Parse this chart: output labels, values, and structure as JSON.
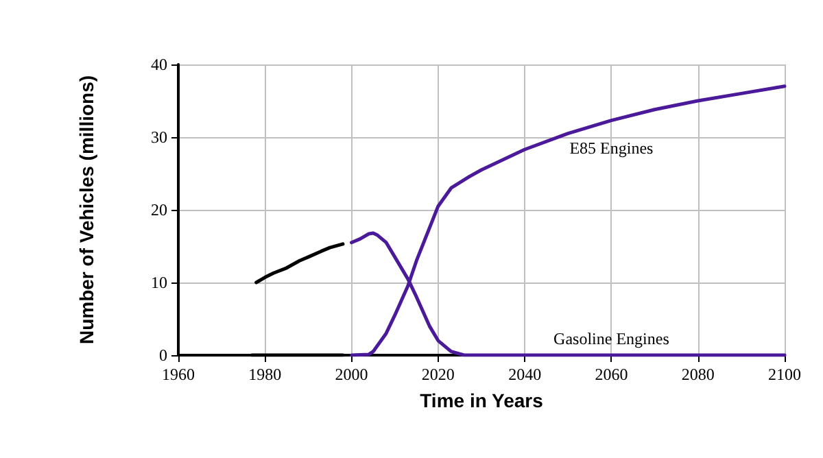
{
  "chart_data": {
    "type": "line",
    "xlabel": "Time in Years",
    "ylabel": "Number of Vehicles (millions)",
    "xlim": [
      1960,
      2100
    ],
    "xticks": [
      1960,
      1980,
      2000,
      2020,
      2040,
      2060,
      2080,
      2100
    ],
    "ylim": [
      0,
      40
    ],
    "yticks": [
      0,
      10,
      20,
      30,
      40
    ],
    "grid": true,
    "legend": false,
    "marker": "none",
    "line_style": "solid",
    "series": [
      {
        "color": "#000000",
        "x": [
          1978,
          1980,
          1982,
          1985,
          1988,
          1990,
          1993,
          1995,
          1998
        ],
        "values": [
          10,
          10.7,
          11.3,
          12,
          13,
          13.5,
          14.3,
          14.8,
          15.3
        ]
      },
      {
        "color": "#000000",
        "x": [
          1977,
          1998
        ],
        "values": [
          0,
          0
        ]
      },
      {
        "name": "Gasoline Engines",
        "color": "#4b1a9a",
        "x": [
          2000,
          2002,
          2004,
          2005,
          2006,
          2008,
          2010,
          2013,
          2015,
          2018,
          2020,
          2023,
          2026,
          2040,
          2060,
          2080,
          2100
        ],
        "values": [
          15.5,
          16,
          16.7,
          16.8,
          16.5,
          15.5,
          13.5,
          10.5,
          8,
          4,
          2,
          0.5,
          0,
          0,
          0,
          0,
          0
        ]
      },
      {
        "name": "E85 Engines",
        "color": "#4b1a9a",
        "x": [
          2000,
          2004,
          2005,
          2008,
          2010,
          2013,
          2015,
          2017,
          2020,
          2023,
          2027,
          2030,
          2040,
          2050,
          2060,
          2070,
          2080,
          2090,
          2100
        ],
        "values": [
          0,
          0.1,
          0.5,
          3,
          5.5,
          9.5,
          13,
          16,
          20.5,
          23,
          24.5,
          25.5,
          28.3,
          30.5,
          32.3,
          33.8,
          35,
          36,
          37
        ]
      }
    ]
  }
}
